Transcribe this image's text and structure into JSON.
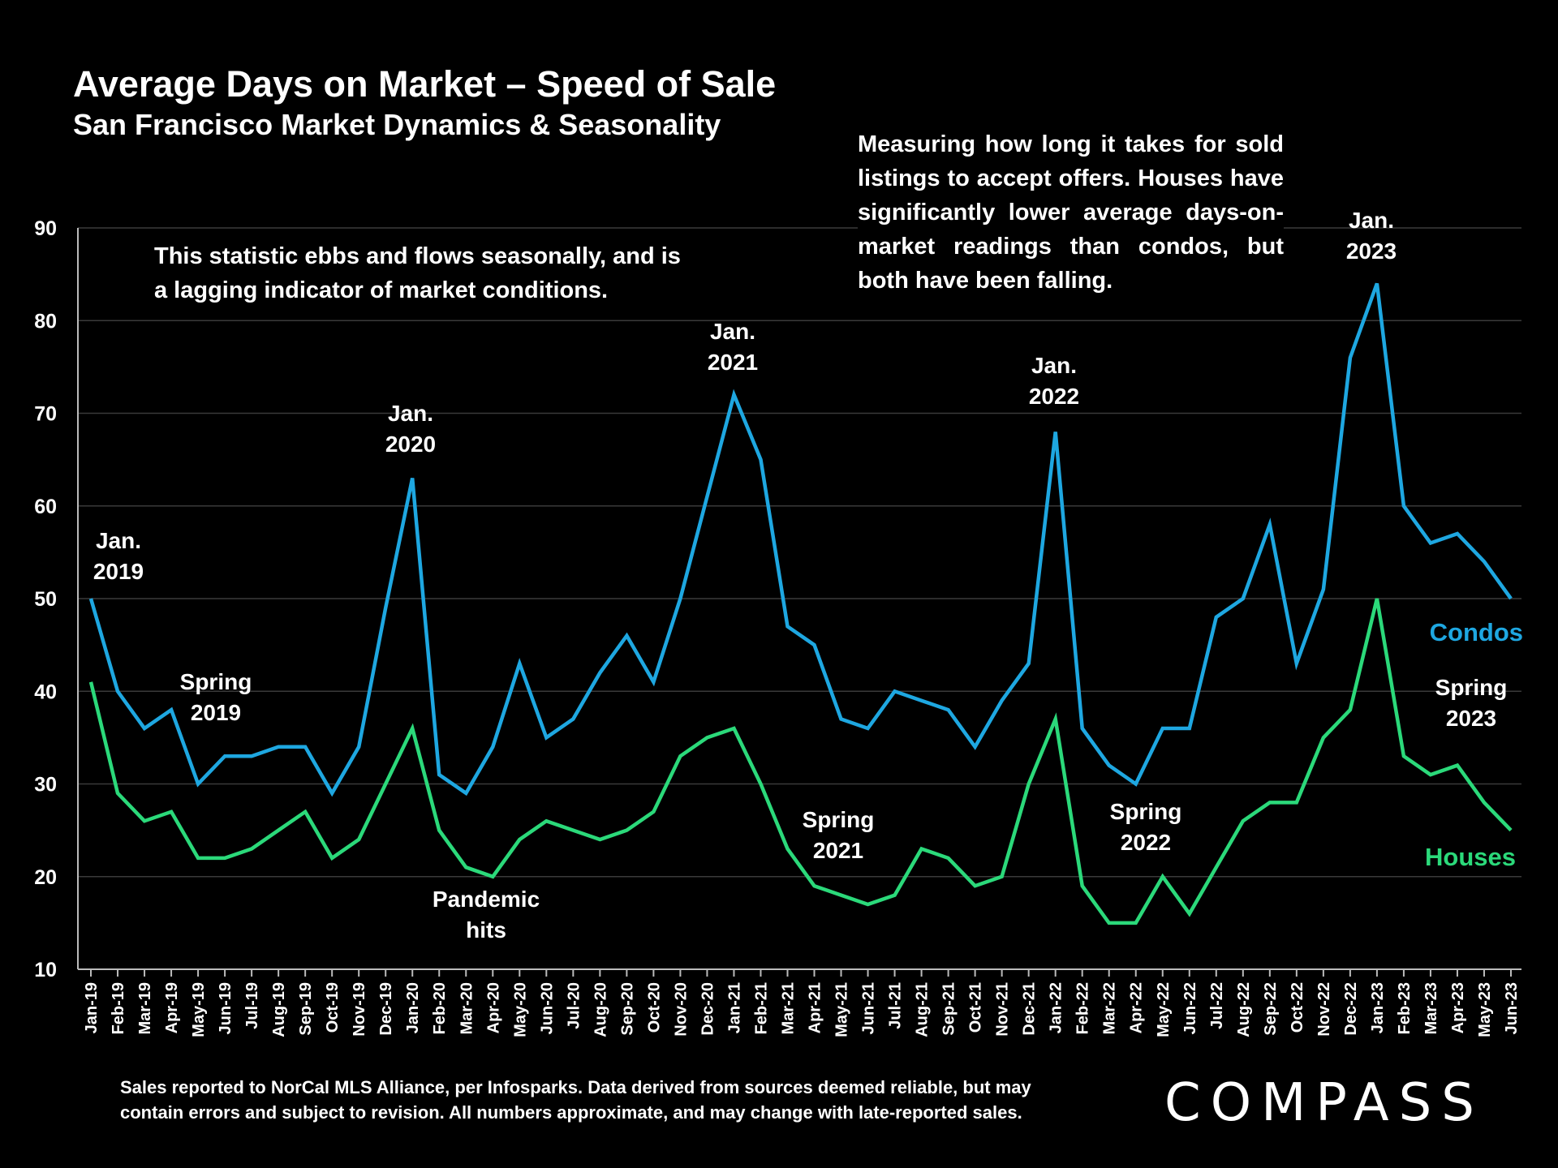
{
  "header": {
    "title": "Average Days on Market – Speed of Sale",
    "subtitle": "San Francisco Market Dynamics & Seasonality"
  },
  "notes": {
    "left": "This statistic ebbs and flows seasonally, and is a lagging indicator of market conditions.",
    "right": "Measuring how long it takes for sold listings to accept offers. Houses have significantly lower average days-on-market readings than condos, but both have been falling."
  },
  "footer": {
    "source": "Sales reported to NorCal MLS Alliance, per Infosparks. Data derived from sources deemed reliable, but may contain errors and subject to revision. All numbers approximate, and may change with late-reported sales."
  },
  "logo": {
    "text": "COMPASS"
  },
  "chart_data": {
    "type": "line",
    "title": "Average Days on Market – Speed of Sale",
    "xlabel": "",
    "ylabel": "",
    "ylim": [
      10,
      90
    ],
    "yticks": [
      10,
      20,
      30,
      40,
      50,
      60,
      70,
      80,
      90
    ],
    "grid": true,
    "categories": [
      "Jan-19",
      "Feb-19",
      "Mar-19",
      "Apr-19",
      "May-19",
      "Jun-19",
      "Jul-19",
      "Aug-19",
      "Sep-19",
      "Oct-19",
      "Nov-19",
      "Dec-19",
      "Jan-20",
      "Feb-20",
      "Mar-20",
      "Apr-20",
      "May-20",
      "Jun-20",
      "Jul-20",
      "Aug-20",
      "Sep-20",
      "Oct-20",
      "Nov-20",
      "Dec-20",
      "Jan-21",
      "Feb-21",
      "Mar-21",
      "Apr-21",
      "May-21",
      "Jun-21",
      "Jul-21",
      "Aug-21",
      "Sep-21",
      "Oct-21",
      "Nov-21",
      "Dec-21",
      "Jan-22",
      "Feb-22",
      "Mar-22",
      "Apr-22",
      "May-22",
      "Jun-22",
      "Jul-22",
      "Aug-22",
      "Sep-22",
      "Oct-22",
      "Nov-22",
      "Dec-22",
      "Jan-23",
      "Feb-23",
      "Mar-23",
      "Apr-23",
      "May-23",
      "Jun-23"
    ],
    "series": [
      {
        "name": "Condos",
        "color": "#1ea7e1",
        "values": [
          50,
          40,
          36,
          38,
          30,
          33,
          33,
          34,
          34,
          29,
          34,
          49,
          63,
          31,
          29,
          34,
          43,
          35,
          37,
          42,
          46,
          41,
          50,
          61,
          72,
          65,
          47,
          45,
          37,
          36,
          40,
          39,
          38,
          34,
          39,
          43,
          68,
          36,
          32,
          30,
          36,
          36,
          48,
          50,
          58,
          43,
          51,
          76,
          84,
          60,
          56,
          57,
          54,
          50
        ]
      },
      {
        "name": "Houses",
        "color": "#2bd97a",
        "values": [
          41,
          29,
          26,
          27,
          22,
          22,
          23,
          25,
          27,
          22,
          24,
          30,
          36,
          25,
          21,
          20,
          24,
          26,
          25,
          24,
          25,
          27,
          33,
          35,
          36,
          30,
          23,
          19,
          18,
          17,
          18,
          23,
          22,
          19,
          20,
          30,
          37,
          19,
          15,
          15,
          20,
          16,
          21,
          26,
          28,
          28,
          35,
          38,
          50,
          33,
          31,
          32,
          28,
          25
        ]
      }
    ],
    "annotations": [
      {
        "text": "Jan.\n2019"
      },
      {
        "text": "Spring\n2019"
      },
      {
        "text": "Jan.\n2020"
      },
      {
        "text": "Pandemic\nhits"
      },
      {
        "text": "Jan.\n2021"
      },
      {
        "text": "Spring\n2021"
      },
      {
        "text": "Jan.\n2022"
      },
      {
        "text": "Spring\n2022"
      },
      {
        "text": "Jan.\n2023"
      },
      {
        "text": "Spring\n2023"
      }
    ]
  }
}
